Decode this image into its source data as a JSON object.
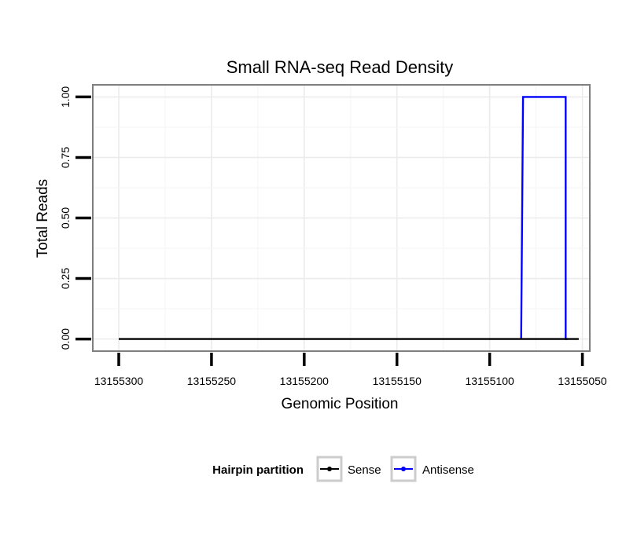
{
  "chart_data": {
    "type": "line",
    "title": "Small RNA-seq Read Density",
    "xlabel": "Genomic Position",
    "ylabel": "Total Reads",
    "x_reversed": true,
    "xlim": [
      13155314,
      13155046
    ],
    "ylim": [
      -0.05,
      1.05
    ],
    "x_ticks": [
      13155300,
      13155250,
      13155200,
      13155150,
      13155100,
      13155050
    ],
    "x_tick_labels": [
      "13155300",
      "13155250",
      "13155200",
      "13155150",
      "13155100",
      "13155050"
    ],
    "y_ticks": [
      0,
      0.25,
      0.5,
      0.75,
      1.0
    ],
    "y_tick_labels": [
      "0.00",
      "0.25",
      "0.50",
      "0.75",
      "1.00"
    ],
    "grid": true,
    "legend": {
      "title": "Hairpin partition",
      "position": "bottom",
      "entries": [
        "Sense",
        "Antisense"
      ]
    },
    "series": [
      {
        "name": "Sense",
        "color": "#000000",
        "x": [
          13155300,
          13155052
        ],
        "y": [
          0,
          0
        ]
      },
      {
        "name": "Antisense",
        "color": "#0000ff",
        "x": [
          13155083,
          13155083,
          13155082,
          13155059,
          13155059,
          13155058
        ],
        "y": [
          0,
          0,
          1,
          1,
          0,
          0
        ]
      }
    ]
  }
}
